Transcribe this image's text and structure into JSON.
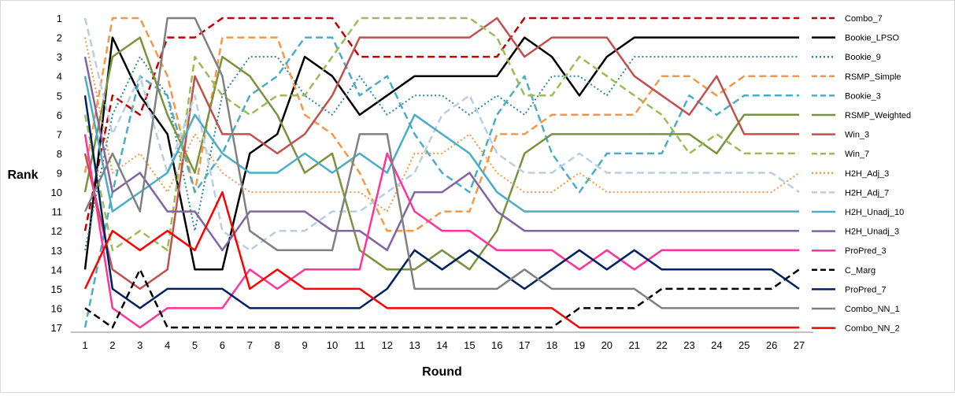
{
  "chart_data": {
    "type": "line",
    "title": "",
    "xlabel": "Round",
    "ylabel": "Rank",
    "x": [
      1,
      2,
      3,
      4,
      5,
      6,
      7,
      8,
      9,
      10,
      11,
      12,
      13,
      14,
      15,
      16,
      17,
      18,
      19,
      20,
      21,
      22,
      23,
      24,
      25,
      26,
      27
    ],
    "ylim": [
      1,
      17
    ],
    "y_inverted": true,
    "y_ticks": [
      1,
      2,
      3,
      4,
      5,
      6,
      7,
      8,
      9,
      10,
      11,
      12,
      13,
      14,
      15,
      16,
      17
    ],
    "grid": false,
    "legend_position": "right",
    "series": [
      {
        "name": "Combo_7",
        "color": "#c00000",
        "dash": "dashed",
        "values": [
          12,
          5,
          6,
          2,
          2,
          1,
          1,
          1,
          1,
          1,
          3,
          3,
          3,
          3,
          3,
          3,
          1,
          1,
          1,
          1,
          1,
          1,
          1,
          1,
          1,
          1,
          1
        ]
      },
      {
        "name": "Bookie_LPSO",
        "color": "#000000",
        "dash": "solid",
        "values": [
          14,
          2,
          5,
          7,
          14,
          14,
          8,
          7,
          3,
          4,
          6,
          5,
          4,
          4,
          4,
          4,
          2,
          3,
          5,
          3,
          2,
          2,
          2,
          2,
          2,
          2,
          2
        ]
      },
      {
        "name": "Bookie_9",
        "color": "#31859c",
        "dash": "dotted",
        "values": [
          13,
          6,
          3,
          5,
          12,
          5,
          3,
          3,
          5,
          6,
          4,
          6,
          5,
          5,
          6,
          5,
          6,
          4,
          4,
          5,
          3,
          3,
          3,
          3,
          3,
          3,
          3
        ]
      },
      {
        "name": "RSMP_Simple",
        "color": "#f79646",
        "dash": "dashed",
        "values": [
          9,
          1,
          1,
          4,
          10,
          2,
          2,
          2,
          6,
          7,
          9,
          12,
          12,
          11,
          11,
          7,
          7,
          6,
          6,
          6,
          6,
          4,
          4,
          5,
          4,
          4,
          4
        ]
      },
      {
        "name": "Bookie_3",
        "color": "#4bacc6",
        "dash": "dashed",
        "values": [
          17,
          10,
          4,
          5,
          10,
          8,
          5,
          4,
          2,
          2,
          5,
          4,
          7,
          9,
          10,
          6,
          4,
          8,
          10,
          8,
          8,
          8,
          5,
          6,
          5,
          5,
          5
        ]
      },
      {
        "name": "RSMP_Weighted",
        "color": "#77933c",
        "dash": "solid",
        "values": [
          10,
          3,
          2,
          6,
          9,
          3,
          4,
          6,
          9,
          8,
          13,
          14,
          14,
          13,
          14,
          12,
          8,
          7,
          7,
          7,
          7,
          7,
          7,
          8,
          6,
          6,
          6
        ]
      },
      {
        "name": "Win_3",
        "color": "#c0504d",
        "dash": "solid",
        "values": [
          8,
          14,
          15,
          14,
          4,
          7,
          7,
          8,
          7,
          5,
          2,
          2,
          2,
          2,
          2,
          1,
          3,
          2,
          2,
          2,
          4,
          5,
          6,
          4,
          7,
          7,
          7
        ]
      },
      {
        "name": "Win_7",
        "color": "#9bbb59",
        "dash": "dashed",
        "values": [
          6,
          13,
          12,
          13,
          3,
          5,
          6,
          5,
          5,
          3,
          1,
          1,
          1,
          1,
          1,
          2,
          5,
          5,
          3,
          4,
          5,
          6,
          8,
          7,
          8,
          8,
          8
        ]
      },
      {
        "name": "H2H_Adj_3",
        "color": "#f79646",
        "dash": "dotted",
        "values": [
          2,
          9,
          8,
          10,
          7,
          9,
          10,
          10,
          10,
          10,
          10,
          11,
          8,
          8,
          7,
          9,
          10,
          10,
          9,
          10,
          10,
          10,
          10,
          10,
          10,
          10,
          9
        ]
      },
      {
        "name": "H2H_Adj_7",
        "color": "#b9cde5",
        "dash": "dashed",
        "values": [
          1,
          7,
          4,
          9,
          5,
          12,
          13,
          12,
          12,
          11,
          11,
          10,
          9,
          6,
          5,
          8,
          9,
          9,
          8,
          9,
          9,
          9,
          9,
          9,
          9,
          9,
          10
        ]
      },
      {
        "name": "H2H_Unadj_10",
        "color": "#4bacc6",
        "dash": "solid",
        "values": [
          4,
          11,
          10,
          9,
          6,
          8,
          9,
          9,
          8,
          9,
          8,
          9,
          6,
          7,
          8,
          10,
          11,
          11,
          11,
          11,
          11,
          11,
          11,
          11,
          11,
          11,
          11
        ]
      },
      {
        "name": "H2H_Unadj_3",
        "color": "#8064a2",
        "dash": "solid",
        "values": [
          3,
          10,
          9,
          11,
          11,
          13,
          11,
          11,
          11,
          12,
          12,
          13,
          10,
          10,
          9,
          11,
          12,
          12,
          12,
          12,
          12,
          12,
          12,
          12,
          12,
          12,
          12
        ]
      },
      {
        "name": "ProPred_3",
        "color": "#ff3399",
        "dash": "solid",
        "values": [
          7,
          16,
          17,
          16,
          16,
          16,
          14,
          15,
          14,
          14,
          14,
          8,
          11,
          12,
          12,
          13,
          13,
          13,
          14,
          13,
          14,
          13,
          13,
          13,
          13,
          13,
          13
        ]
      },
      {
        "name": "C_Marg",
        "color": "#000000",
        "dash": "dashed",
        "values": [
          16,
          17,
          14,
          17,
          17,
          17,
          17,
          17,
          17,
          17,
          17,
          17,
          17,
          17,
          17,
          17,
          17,
          17,
          16,
          16,
          16,
          15,
          15,
          15,
          15,
          15,
          14
        ]
      },
      {
        "name": "ProPred_7",
        "color": "#002060",
        "dash": "solid",
        "values": [
          5,
          15,
          16,
          15,
          15,
          15,
          16,
          16,
          16,
          16,
          16,
          15,
          13,
          14,
          13,
          14,
          15,
          14,
          13,
          14,
          13,
          14,
          14,
          14,
          14,
          14,
          15
        ]
      },
      {
        "name": "Combo_NN_1",
        "color": "#808080",
        "dash": "solid",
        "values": [
          11,
          8,
          11,
          1,
          1,
          4,
          12,
          13,
          13,
          13,
          7,
          7,
          15,
          15,
          15,
          15,
          14,
          15,
          15,
          15,
          15,
          16,
          16,
          16,
          16,
          16,
          16
        ]
      },
      {
        "name": "Combo_NN_2",
        "color": "#ff0000",
        "dash": "solid",
        "values": [
          15,
          12,
          13,
          12,
          13,
          10,
          15,
          14,
          15,
          15,
          15,
          16,
          16,
          16,
          16,
          16,
          16,
          16,
          17,
          17,
          17,
          17,
          17,
          17,
          17,
          17,
          17
        ]
      }
    ]
  }
}
